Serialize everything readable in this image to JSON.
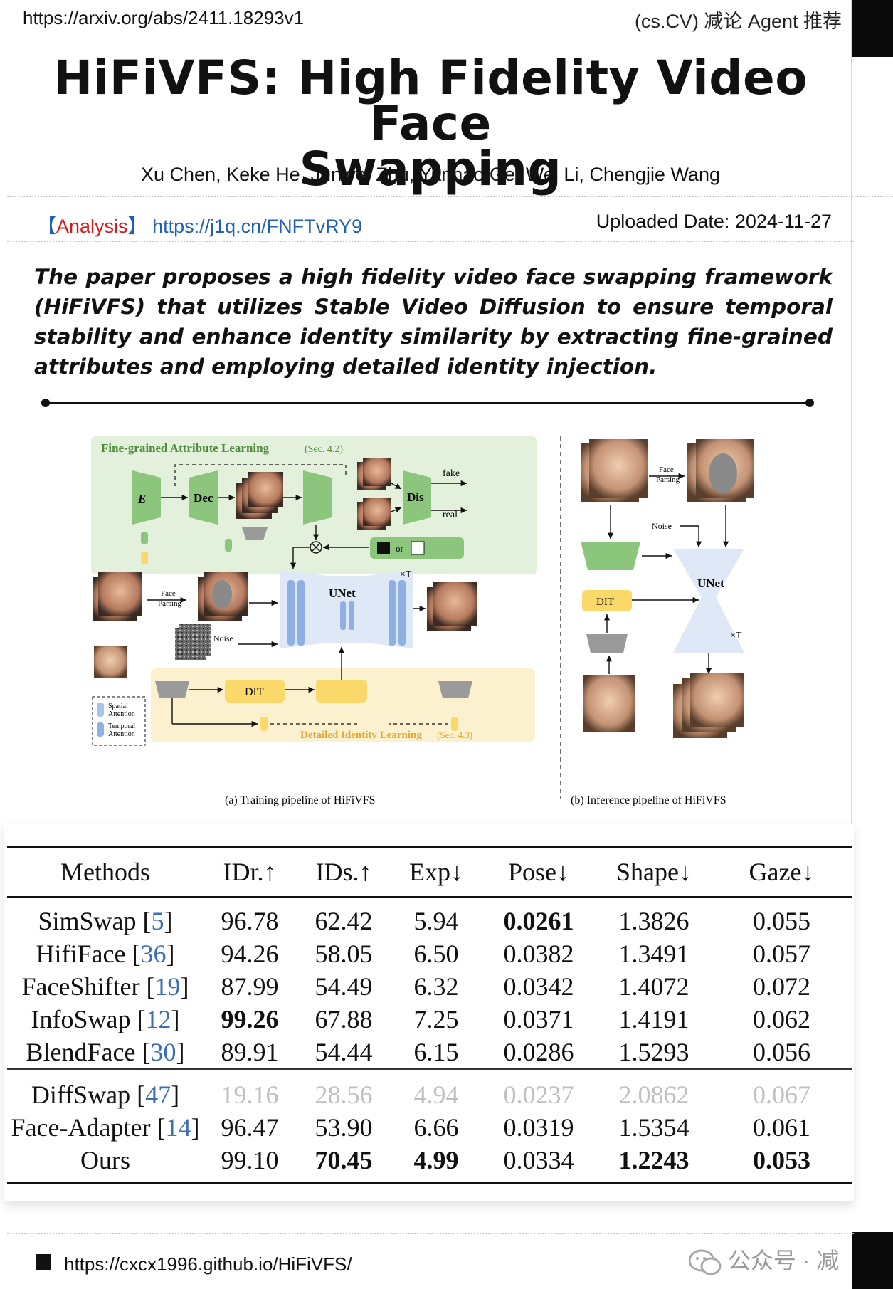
{
  "header": {
    "arxiv_url": "https://arxiv.org/abs/2411.18293v1",
    "tag": "(cs.CV) 减论 Agent 推荐"
  },
  "paper": {
    "title_line1": "HiFiVFS: High Fidelity Video Face",
    "title_line2": "Swapping",
    "authors": "Xu Chen, Keke He, Junwei Zhu, Yanhao Ge, Wei Li, Chengjie Wang",
    "analysis_bracket_open": "【",
    "analysis_label": "Analysis",
    "analysis_bracket_close": "】",
    "analysis_link": "https://j1q.cn/FNFTvRY9",
    "uploaded": "Uploaded Date: 2024-11-27",
    "summary": "The paper proposes a high fidelity video face swapping framework (HiFiVFS) that utilizes Stable Video Diffusion to ensure temporal stability and enhance identity similarity by extracting fine-grained attributes and employing detailed identity injection."
  },
  "figure": {
    "fal_title": "Fine-grained Attribute Learning",
    "fal_sec": "(Sec. 4.2)",
    "dil_title": "Detailed Identity Learning",
    "dil_sec": "(Sec. 4.3)",
    "caption_a": "(a) Training pipeline of HiFiVFS",
    "caption_b": "(b) Inference pipeline of HiFiVFS",
    "e_attr": "E",
    "dec": "Dec",
    "dis": "Dis",
    "unet": "UNet",
    "dit": "DIT",
    "noise": "Noise",
    "face_parsing_1": "Face",
    "face_parsing_2": "Parsing",
    "times_t": "×T",
    "fake": "fake",
    "real": "real",
    "or": "or",
    "spatial": "Spatial",
    "temporal": "Temporal",
    "attention": "Attention",
    "colors": {
      "green_bg": "#e3f1dc",
      "green_block": "#8cc67d",
      "yellow_bg": "#fbf1cf",
      "yellow_block": "#fbd86a",
      "unet_bg": "#dfe8f6",
      "unet_block": "#8fb0e3",
      "gray_block": "#9a9a9a"
    }
  },
  "table": {
    "headers": [
      "Methods",
      "IDr.↑",
      "IDs.↑",
      "Exp↓",
      "Pose↓",
      "Shape↓",
      "Gaze↓"
    ],
    "group1": [
      {
        "method": "SimSwap",
        "ref": "5",
        "values": [
          "96.78",
          "62.42",
          "5.94",
          "0.0261",
          "1.3826",
          "0.055"
        ]
      },
      {
        "method": "HifiFace",
        "ref": "36",
        "values": [
          "94.26",
          "58.05",
          "6.50",
          "0.0382",
          "1.3491",
          "0.057"
        ]
      },
      {
        "method": "FaceShifter",
        "ref": "19",
        "values": [
          "87.99",
          "54.49",
          "6.32",
          "0.0342",
          "1.4072",
          "0.072"
        ]
      },
      {
        "method": "InfoSwap",
        "ref": "12",
        "values": [
          "99.26",
          "67.88",
          "7.25",
          "0.0371",
          "1.4191",
          "0.062"
        ]
      },
      {
        "method": "BlendFace",
        "ref": "30",
        "values": [
          "89.91",
          "54.44",
          "6.15",
          "0.0286",
          "1.5293",
          "0.056"
        ]
      }
    ],
    "group2": [
      {
        "method": "DiffSwap",
        "ref": "47",
        "values": [
          "19.16",
          "28.56",
          "4.94",
          "0.0237",
          "2.0862",
          "0.067"
        ]
      },
      {
        "method": "Face-Adapter",
        "ref": "14",
        "values": [
          "96.47",
          "53.90",
          "6.66",
          "0.0319",
          "1.5354",
          "0.061"
        ]
      },
      {
        "method": "Ours",
        "ref": "",
        "values": [
          "99.10",
          "70.45",
          "4.99",
          "0.0334",
          "1.2243",
          "0.053"
        ]
      }
    ]
  },
  "footer": {
    "project_url": "https://cxcx1996.github.io/HiFiVFS/",
    "wechat": "公众号 · 减"
  }
}
